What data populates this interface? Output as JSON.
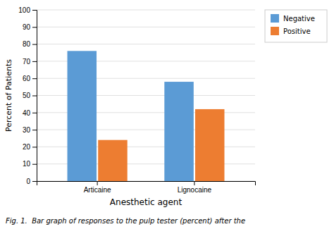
{
  "chart_data": {
    "type": "bar",
    "categories": [
      "Articaine",
      "Lignocaine"
    ],
    "series": [
      {
        "name": "Negative",
        "color": "#5B9BD5",
        "values": [
          76,
          58
        ]
      },
      {
        "name": "Positive",
        "color": "#ED7D31",
        "values": [
          24,
          42
        ]
      }
    ],
    "xlabel": "Anesthetic agent",
    "ylabel": "Percent of Patients",
    "caption": "Fig. 1.  Bar graph of responses to the pulp tester (percent) after the",
    "ylim": [
      0,
      100
    ],
    "yticks": [
      0,
      10,
      20,
      30,
      40,
      50,
      60,
      70,
      80,
      90,
      100
    ],
    "grid": true,
    "legend": "upper right"
  }
}
